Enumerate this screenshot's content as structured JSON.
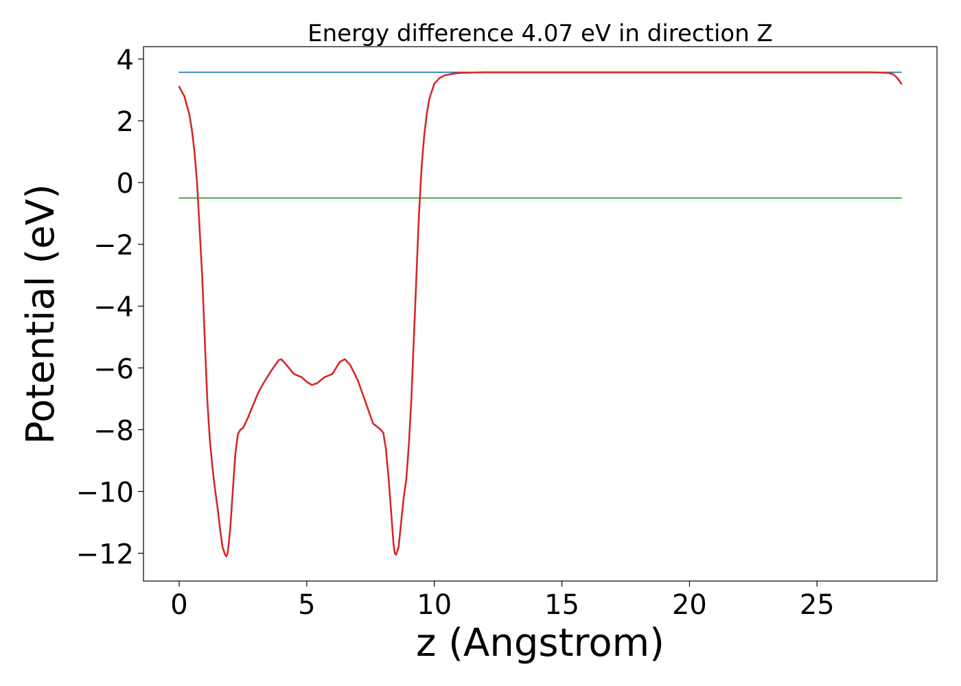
{
  "chart_data": {
    "type": "line",
    "title": "Energy difference 4.07 eV in direction Z",
    "xlabel": "z (Angstrom)",
    "ylabel": "Potential (eV)",
    "xlim": [
      -1.4,
      29.7
    ],
    "ylim": [
      -12.9,
      4.4
    ],
    "grid": false,
    "legend": "none",
    "x_ticks": [
      0,
      5,
      10,
      15,
      20,
      25
    ],
    "x_tick_labels": [
      "0",
      "5",
      "10",
      "15",
      "20",
      "25"
    ],
    "y_ticks": [
      4,
      2,
      0,
      -2,
      -4,
      -6,
      -8,
      -10,
      -12
    ],
    "y_tick_labels": [
      "4",
      "2",
      "0",
      "−2",
      "−4",
      "−6",
      "−8",
      "−10",
      "−12"
    ],
    "series": [
      {
        "color": "#1f77b4",
        "x": [
          0,
          28.3
        ],
        "y": [
          3.57,
          3.57
        ]
      },
      {
        "color": "#2ca02c",
        "x": [
          0,
          28.3
        ],
        "y": [
          -0.5,
          -0.5
        ]
      },
      {
        "color": "#d62728",
        "x": [
          0,
          0.2,
          0.4,
          0.5,
          0.6,
          0.7,
          0.8,
          0.9,
          1.0,
          1.1,
          1.2,
          1.3,
          1.4,
          1.5,
          1.6,
          1.7,
          1.8,
          1.85,
          1.9,
          2.0,
          2.1,
          2.2,
          2.3,
          2.4,
          2.5,
          2.7,
          2.9,
          3.1,
          3.3,
          3.6,
          3.9,
          4.0,
          4.2,
          4.5,
          4.8,
          5.0,
          5.2,
          5.4,
          5.7,
          6.0,
          6.3,
          6.5,
          6.7,
          7.0,
          7.3,
          7.6,
          7.9,
          8.0,
          8.1,
          8.2,
          8.3,
          8.4,
          8.45,
          8.5,
          8.6,
          8.7,
          8.8,
          8.9,
          9.0,
          9.1,
          9.2,
          9.3,
          9.4,
          9.5,
          9.6,
          9.7,
          9.8,
          10.0,
          10.2,
          10.4,
          10.7,
          11.0,
          11.5,
          12.0,
          13.0,
          15.0,
          20.0,
          25.0,
          27.0,
          27.5,
          27.8,
          28.0,
          28.15,
          28.3
        ],
        "y": [
          3.1,
          2.8,
          2.2,
          1.7,
          1.0,
          0.0,
          -1.5,
          -3.0,
          -5.0,
          -7.0,
          -8.3,
          -9.2,
          -9.9,
          -10.5,
          -11.2,
          -11.8,
          -12.05,
          -12.1,
          -12.0,
          -11.2,
          -10.0,
          -8.8,
          -8.15,
          -8.0,
          -7.95,
          -7.6,
          -7.2,
          -6.8,
          -6.5,
          -6.1,
          -5.75,
          -5.72,
          -5.9,
          -6.2,
          -6.3,
          -6.45,
          -6.55,
          -6.5,
          -6.3,
          -6.2,
          -5.8,
          -5.72,
          -5.9,
          -6.4,
          -7.1,
          -7.8,
          -8.0,
          -8.1,
          -8.6,
          -9.5,
          -10.6,
          -11.7,
          -12.0,
          -12.05,
          -11.8,
          -11.0,
          -10.2,
          -9.6,
          -8.5,
          -7.0,
          -5.0,
          -3.0,
          -1.0,
          0.5,
          1.5,
          2.2,
          2.7,
          3.2,
          3.38,
          3.47,
          3.52,
          3.55,
          3.56,
          3.57,
          3.57,
          3.57,
          3.57,
          3.57,
          3.57,
          3.56,
          3.55,
          3.5,
          3.38,
          3.2
        ]
      }
    ]
  }
}
